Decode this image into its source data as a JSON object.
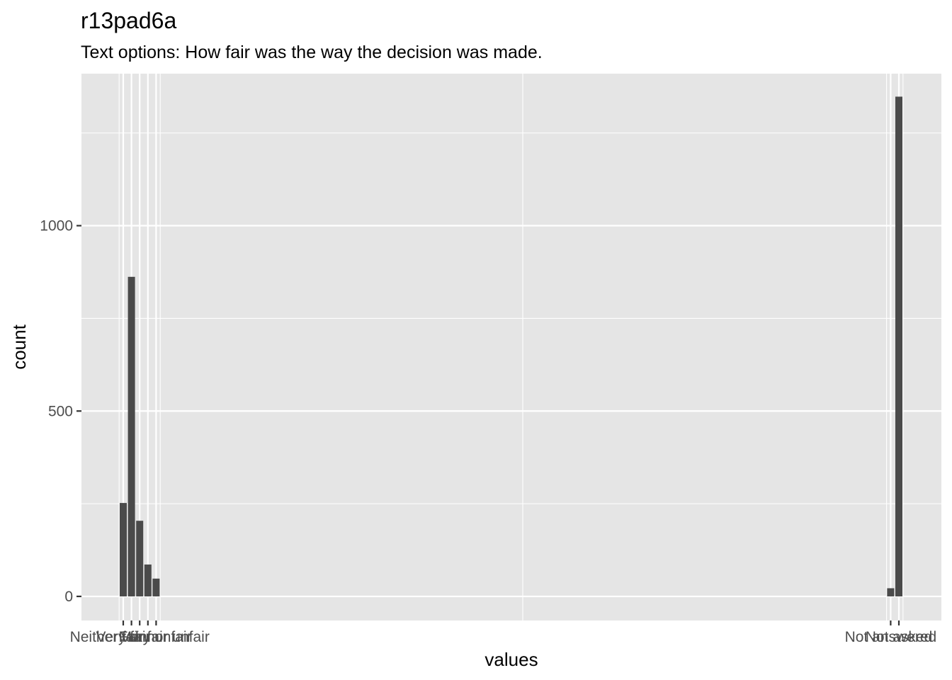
{
  "chart_data": {
    "type": "bar",
    "title": "r13pad6a",
    "subtitle": "Text options: How fair was the way the decision was made.",
    "xlabel": "values",
    "ylabel": "count",
    "ylim": [
      -65,
      1410
    ],
    "y_ticks": [
      0,
      500,
      1000
    ],
    "grid": true,
    "categories": [
      "Very fair",
      "Fair",
      "Neither fair nor unfair",
      "Unfair",
      "Very unfair",
      "Not answered",
      "Not asked"
    ],
    "values": [
      252,
      862,
      204,
      86,
      48,
      22,
      1348
    ],
    "colors": {
      "panel": "#e5e5e5",
      "grid_major": "#ffffff",
      "bar": "#4a4a4a",
      "tick": "#333333"
    }
  }
}
